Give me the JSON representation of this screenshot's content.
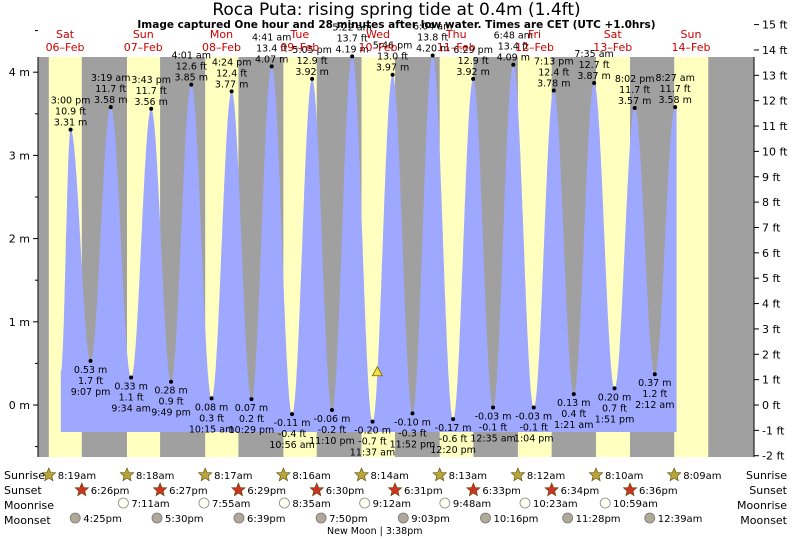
{
  "title": "Roca Puta: rising  spring tide at 0.4m (1.4ft)",
  "subtitle": "Image captured One hour and 28 minutes after low water. Times are CET (UTC +1.0hrs)",
  "days": [
    {
      "dow": "Sat",
      "date": "06–Feb"
    },
    {
      "dow": "Sun",
      "date": "07–Feb"
    },
    {
      "dow": "Mon",
      "date": "08–Feb"
    },
    {
      "dow": "Tue",
      "date": "09–Feb"
    },
    {
      "dow": "Wed",
      "date": "10–Feb"
    },
    {
      "dow": "Thu",
      "date": "11–Feb"
    },
    {
      "dow": "Fri",
      "date": "12–Feb"
    },
    {
      "dow": "Sat",
      "date": "13–Feb"
    },
    {
      "dow": "Sun",
      "date": "14–Feb"
    }
  ],
  "rows": {
    "sunrise": "Sunrise",
    "sunset": "Sunset",
    "moonrise": "Moonrise",
    "moonset": "Moonset"
  },
  "sunrise_times": [
    "8:19am",
    "8:18am",
    "8:17am",
    "8:16am",
    "8:14am",
    "8:13am",
    "8:12am",
    "8:10am",
    "8:09am"
  ],
  "sunset_times": [
    "6:26pm",
    "6:27pm",
    "6:29pm",
    "6:30pm",
    "6:31pm",
    "6:33pm",
    "6:34pm",
    "6:36pm"
  ],
  "moonrise_times": [
    "7:11am",
    "7:55am",
    "8:35am",
    "9:12am",
    "9:48am",
    "10:23am",
    "10:59am"
  ],
  "moonset_times": [
    "4:25pm",
    "5:30pm",
    "6:39pm",
    "7:50pm",
    "9:03pm",
    "10:16pm",
    "11:28pm",
    "12:39am"
  ],
  "moon_note": "New Moon | 3:38pm",
  "colors": {
    "night": "#a0a0a0",
    "day": "#ffffc0",
    "tide_fill": "#9fa8ff",
    "day_label": "#cc0000",
    "sun_star": "#b8a63a",
    "sunset_star": "#cc3322",
    "moonrise_circle": "#fffff0",
    "moonset_circle": "#b0a898"
  },
  "chart_data": {
    "type": "area",
    "title": "Roca Puta: rising  spring tide at 0.4m (1.4ft)",
    "ylabel_left": "m",
    "ylabel_right": "ft",
    "y_ticks_m": [
      0,
      1,
      2,
      3,
      4
    ],
    "y_ticks_ft": [
      -2,
      -1,
      0,
      1,
      2,
      3,
      4,
      5,
      6,
      7,
      8,
      9,
      10,
      11,
      12,
      13,
      14,
      15
    ],
    "ylim_m": [
      -0.55,
      4.86
    ],
    "current_level_m": 0.4,
    "extremes": [
      {
        "type": "high",
        "time": "3:00 pm",
        "ft": "10.9 ft",
        "m": 3.31
      },
      {
        "type": "low",
        "time": "9:07 pm",
        "ft": "1.7 ft",
        "m": 0.53
      },
      {
        "type": "high",
        "time": "3:19 am",
        "ft": "11.7 ft",
        "m": 3.58
      },
      {
        "type": "low",
        "time": "9:34 am",
        "ft": "1.1 ft",
        "m": 0.33
      },
      {
        "type": "high",
        "time": "3:43 pm",
        "ft": "11.7 ft",
        "m": 3.56
      },
      {
        "type": "low",
        "time": "9:49 pm",
        "ft": "0.9 ft",
        "m": 0.28
      },
      {
        "type": "high",
        "time": "4:01 am",
        "ft": "12.6 ft",
        "m": 3.85
      },
      {
        "type": "low",
        "time": "10:15 am",
        "ft": "0.3 ft",
        "m": 0.08
      },
      {
        "type": "high",
        "time": "4:24 pm",
        "ft": "12.4 ft",
        "m": 3.77
      },
      {
        "type": "low",
        "time": "10:29 pm",
        "ft": "0.2 ft",
        "m": 0.07
      },
      {
        "type": "high",
        "time": "4:41 am",
        "ft": "13.4 ft",
        "m": 4.07
      },
      {
        "type": "low",
        "time": "10:56 am",
        "ft": "-0.4 ft",
        "m": -0.11
      },
      {
        "type": "high",
        "time": "5:05 pm",
        "ft": "12.9 ft",
        "m": 3.92
      },
      {
        "type": "low",
        "time": "11:10 pm",
        "ft": "-0.2 ft",
        "m": -0.06
      },
      {
        "type": "high",
        "time": "5:22 am",
        "ft": "13.7 ft",
        "m": 4.19
      },
      {
        "type": "low",
        "time": "11:37 am",
        "ft": "-0.7 ft",
        "m": -0.2
      },
      {
        "type": "high",
        "time": "5:46 pm",
        "ft": "13.0 ft",
        "m": 3.97
      },
      {
        "type": "low",
        "time": "11:52 pm",
        "ft": "-0.3 ft",
        "m": -0.1
      },
      {
        "type": "high",
        "time": "6:04 am",
        "ft": "13.8 ft",
        "m": 4.2
      },
      {
        "type": "low",
        "time": "12:20 pm",
        "ft": "-0.6 ft",
        "m": -0.17
      },
      {
        "type": "high",
        "time": "6:29 pm",
        "ft": "12.9 ft",
        "m": 3.92
      },
      {
        "type": "low",
        "time": "12:35 am",
        "ft": "-0.1 ft",
        "m": -0.03
      },
      {
        "type": "high",
        "time": "6:48 am",
        "ft": "13.4 ft",
        "m": 4.09
      },
      {
        "type": "low",
        "time": "1:04 pm",
        "ft": "-0.1 ft",
        "m": -0.03
      },
      {
        "type": "high",
        "time": "7:13 pm",
        "ft": "12.4 ft",
        "m": 3.78
      },
      {
        "type": "low",
        "time": "1:21 am",
        "ft": "0.4 ft",
        "m": 0.13
      },
      {
        "type": "high",
        "time": "7:35 am",
        "ft": "12.7 ft",
        "m": 3.87
      },
      {
        "type": "low",
        "time": "1:51 pm",
        "ft": "0.7 ft",
        "m": 0.2
      },
      {
        "type": "high",
        "time": "8:02 pm",
        "ft": "11.7 ft",
        "m": 3.57
      },
      {
        "type": "low",
        "time": "2:12 am",
        "ft": "1.2 ft",
        "m": 0.37
      },
      {
        "type": "high",
        "time": "8:27 am",
        "ft": "11.7 ft",
        "m": 3.58
      }
    ]
  }
}
